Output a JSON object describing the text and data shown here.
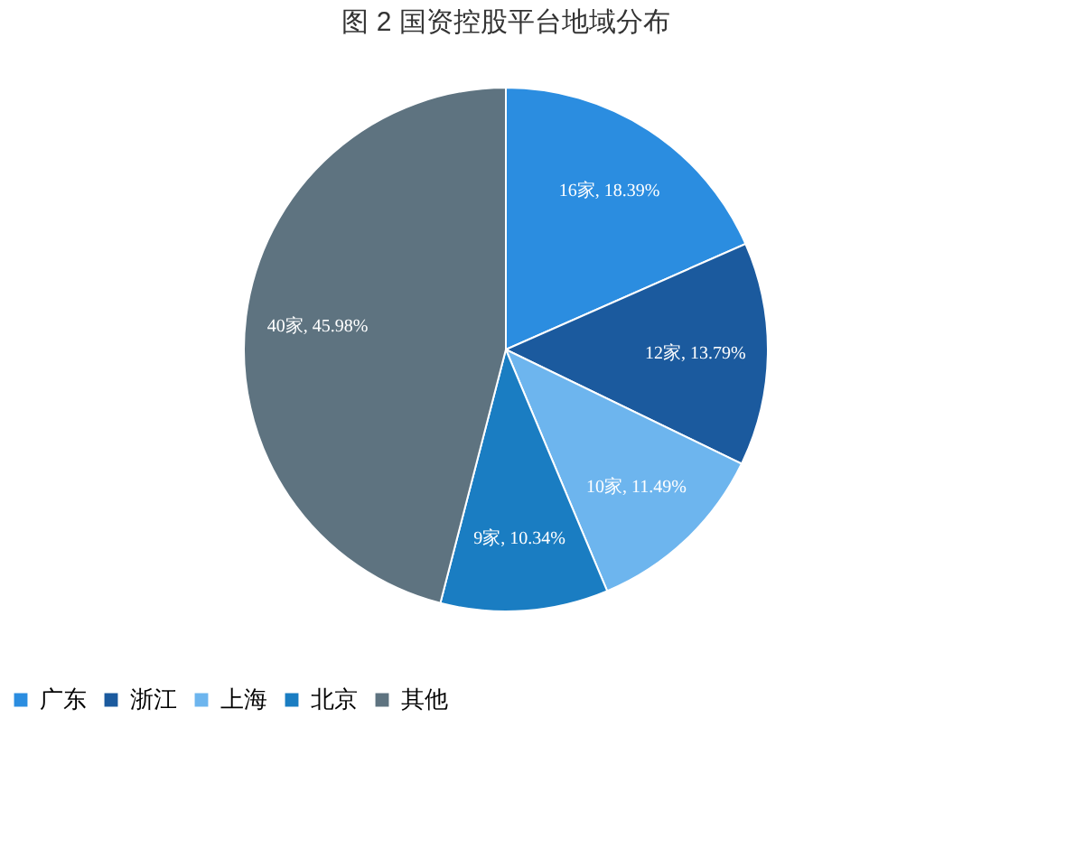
{
  "chart_data": {
    "type": "pie",
    "title": "图 2 国资控股平台地域分布",
    "categories": [
      "广东",
      "浙江",
      "上海",
      "北京",
      "其他"
    ],
    "values": [
      16,
      12,
      10,
      9,
      40
    ],
    "value_labels": [
      "16家, 18.39%",
      "12家, 13.79%",
      "10家, 11.49%",
      "9家, 10.34%",
      "40家, 45.98%"
    ],
    "colors": [
      "#2b8de0",
      "#1b5a9e",
      "#6db5ee",
      "#1a7dc2",
      "#5e7380"
    ],
    "legend": "bottom"
  }
}
